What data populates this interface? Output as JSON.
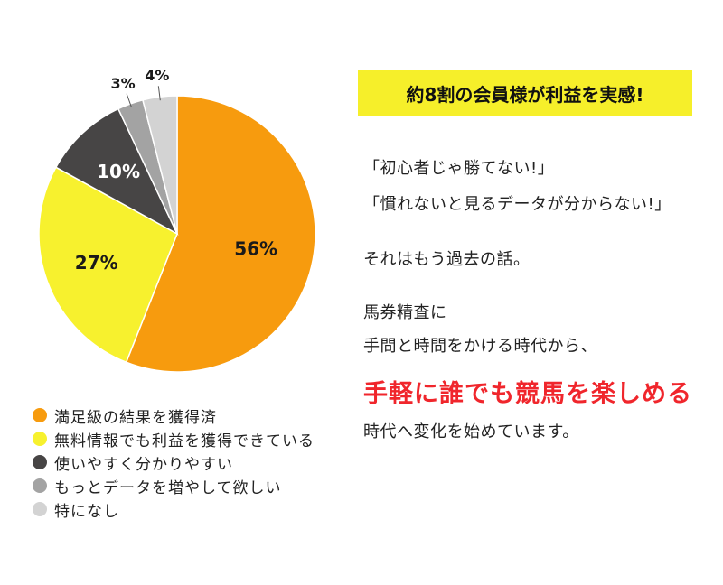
{
  "chart_data": {
    "type": "pie",
    "categories": [
      "満足級の結果を獲得済",
      "無料情報でも利益を獲得できている",
      "使いやすく分かりやすい",
      "もっとデータを増やして欲しい",
      "特になし"
    ],
    "values": [
      56,
      27,
      10,
      3,
      4
    ],
    "value_labels": [
      "56%",
      "27%",
      "10%",
      "3%",
      "4%"
    ],
    "colors": [
      "#f79b0e",
      "#f7f12e",
      "#474545",
      "#a3a3a3",
      "#d3d3d3"
    ],
    "label_colors": [
      "#1a1a1a",
      "#1a1a1a",
      "#ffffff",
      "#1a1a1a",
      "#1a1a1a"
    ],
    "legend_position": "bottom-left"
  },
  "banner": {
    "text": "約8割の会員様が利益を実感!"
  },
  "text": {
    "line1": "「初心者じゃ勝てない!」",
    "line2": "「慣れないと見るデータが分からない!」",
    "line3": "それはもう過去の話。",
    "line4": "馬券精査に",
    "line5": "手間と時間をかける時代から、",
    "highlight": "手軽に誰でも競馬を楽しめる",
    "line6": "時代へ変化を始めています。"
  }
}
